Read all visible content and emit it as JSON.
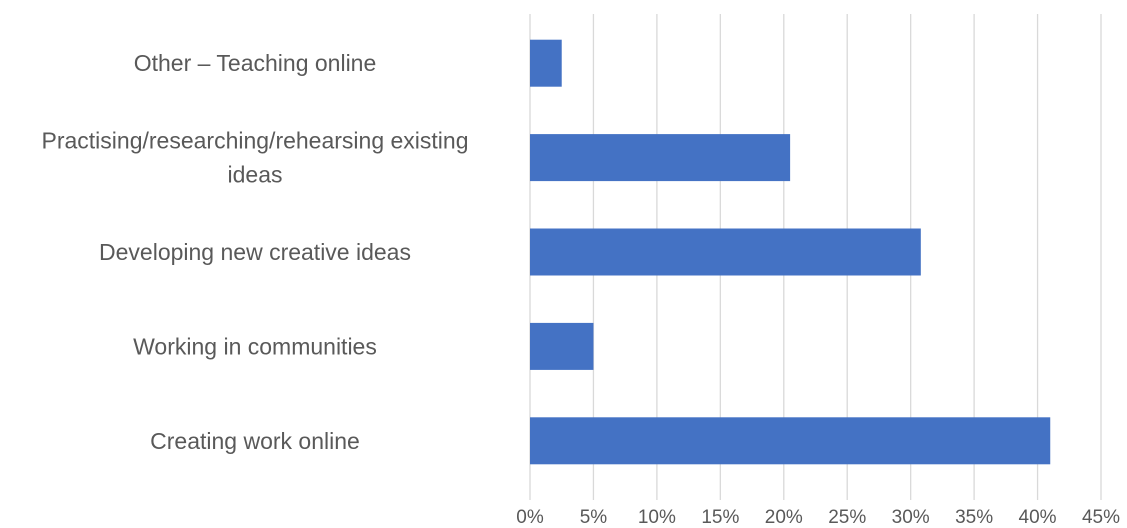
{
  "chart_data": {
    "type": "bar",
    "orientation": "horizontal",
    "title": "",
    "xlabel": "",
    "ylabel": "",
    "categories": [
      [
        "Other – Teaching online"
      ],
      [
        "Practising/researching/rehearsing existing",
        "ideas"
      ],
      [
        "Developing new creative ideas"
      ],
      [
        "Working in communities"
      ],
      [
        "Creating work online"
      ]
    ],
    "values": [
      2.5,
      20.5,
      30.8,
      5.0,
      41.0
    ],
    "xlim": [
      0,
      45
    ],
    "ticks": [
      "0%",
      "5%",
      "10%",
      "15%",
      "20%",
      "25%",
      "30%",
      "35%",
      "40%",
      "45%"
    ],
    "grid": true,
    "legend": "none",
    "bar_color": "#4472c4"
  }
}
